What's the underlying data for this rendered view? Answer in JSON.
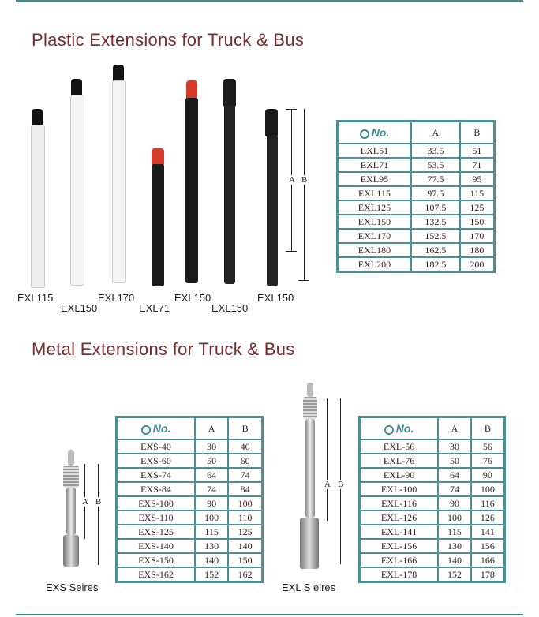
{
  "plastic": {
    "title": "Plastic Extensions for Truck & Bus",
    "labels": [
      "EXL115",
      "EXL150",
      "EXL170",
      "EXL71",
      "EXL150",
      "EXL150",
      "EXL150"
    ],
    "dims": {
      "a": "A",
      "b": "B"
    },
    "table": {
      "headers": [
        "No.",
        "A",
        "B"
      ],
      "rows": [
        [
          "EXL51",
          "33.5",
          "51"
        ],
        [
          "EXL71",
          "53.5",
          "71"
        ],
        [
          "EXL95",
          "77.5",
          "95"
        ],
        [
          "EXL115",
          "97.5",
          "115"
        ],
        [
          "EXL125",
          "107.5",
          "125"
        ],
        [
          "EXL150",
          "132.5",
          "150"
        ],
        [
          "EXL170",
          "152.5",
          "170"
        ],
        [
          "EXL180",
          "162.5",
          "180"
        ],
        [
          "EXL200",
          "182.5",
          "200"
        ]
      ]
    }
  },
  "metal": {
    "title": "Metal Extensions for Truck & Bus",
    "exs_label": "EXS Seires",
    "exl_label": "EXL S eires",
    "dims": {
      "a": "A",
      "b": "B"
    },
    "exs_table": {
      "headers": [
        "No.",
        "A",
        "B"
      ],
      "rows": [
        [
          "EXS-40",
          "30",
          "40"
        ],
        [
          "EXS-60",
          "50",
          "60"
        ],
        [
          "EXS-74",
          "64",
          "74"
        ],
        [
          "EXS-84",
          "74",
          "84"
        ],
        [
          "EXS-100",
          "90",
          "100"
        ],
        [
          "EXS-110",
          "100",
          "110"
        ],
        [
          "EXS-125",
          "115",
          "125"
        ],
        [
          "EXS-140",
          "130",
          "140"
        ],
        [
          "EXS-150",
          "140",
          "150"
        ],
        [
          "EXS-162",
          "152",
          "162"
        ]
      ]
    },
    "exl_table": {
      "headers": [
        "No.",
        "A",
        "B"
      ],
      "rows": [
        [
          "EXL-56",
          "30",
          "56"
        ],
        [
          "EXL-76",
          "50",
          "76"
        ],
        [
          "EXL-90",
          "64",
          "90"
        ],
        [
          "EXL-100",
          "74",
          "100"
        ],
        [
          "EXL-116",
          "90",
          "116"
        ],
        [
          "EXL-126",
          "100",
          "126"
        ],
        [
          "EXL-141",
          "115",
          "141"
        ],
        [
          "EXL-156",
          "130",
          "156"
        ],
        [
          "EXL-166",
          "140",
          "166"
        ],
        [
          "EXL-178",
          "152",
          "178"
        ]
      ]
    }
  },
  "colors": {
    "accent": "#4a9095",
    "title": "#7a2b2b"
  }
}
